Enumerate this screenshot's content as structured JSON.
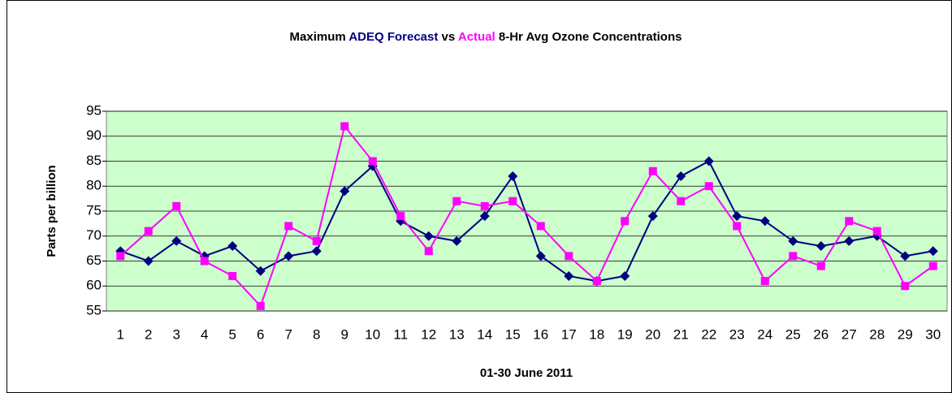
{
  "chart_data": {
    "type": "line",
    "title_prefix": "Maximum",
    "title_middle": "vs",
    "title_suffix": "8-Hr Avg Ozone Concentrations",
    "xlabel": "01-30 June 2011",
    "ylabel": "Parts per billion",
    "categories": [
      "1",
      "2",
      "3",
      "4",
      "5",
      "6",
      "7",
      "8",
      "9",
      "10",
      "11",
      "12",
      "13",
      "14",
      "15",
      "16",
      "17",
      "18",
      "19",
      "20",
      "21",
      "22",
      "23",
      "24",
      "25",
      "26",
      "27",
      "28",
      "29",
      "30"
    ],
    "series": [
      {
        "name": "ADEQ Forecast",
        "color": "#000080",
        "marker": "diamond",
        "values": [
          67,
          65,
          69,
          66,
          68,
          63,
          66,
          67,
          79,
          84,
          73,
          70,
          69,
          74,
          82,
          66,
          62,
          61,
          62,
          74,
          82,
          85,
          74,
          73,
          69,
          68,
          69,
          70,
          66,
          67
        ]
      },
      {
        "name": "Actual",
        "color": "#ff00ff",
        "marker": "square",
        "values": [
          66,
          71,
          76,
          65,
          62,
          56,
          72,
          69,
          92,
          85,
          74,
          67,
          77,
          76,
          77,
          72,
          66,
          61,
          73,
          83,
          77,
          80,
          72,
          61,
          66,
          64,
          73,
          71,
          60,
          64
        ]
      }
    ],
    "ylim": [
      55,
      95
    ],
    "yticks": [
      55,
      60,
      65,
      70,
      75,
      80,
      85,
      90,
      95
    ],
    "grid": true,
    "plot_background": "#ccffcc"
  }
}
